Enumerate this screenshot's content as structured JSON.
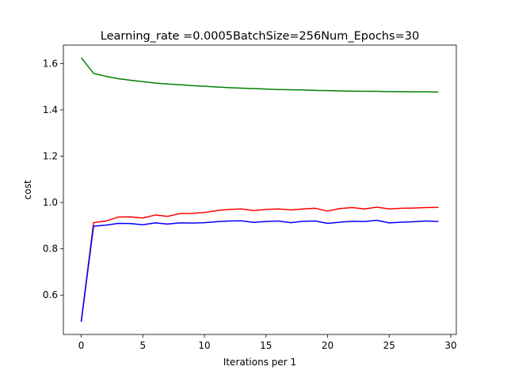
{
  "chart_data": {
    "type": "line",
    "title": "Learning_rate =0.0005BatchSize=256Num_Epochs=30",
    "xlabel": "Iterations per 1",
    "ylabel": "cost",
    "xlim": [
      -1.45,
      30.45
    ],
    "ylim": [
      0.43,
      1.68
    ],
    "x_ticks": [
      0,
      5,
      10,
      15,
      20,
      25,
      30
    ],
    "y_ticks": [
      0.6,
      0.8,
      1.0,
      1.2,
      1.4,
      1.6
    ],
    "x": [
      0,
      1,
      2,
      3,
      4,
      5,
      6,
      7,
      8,
      9,
      10,
      11,
      12,
      13,
      14,
      15,
      16,
      17,
      18,
      19,
      20,
      21,
      22,
      23,
      24,
      25,
      26,
      27,
      28,
      29
    ],
    "series": [
      {
        "color": "#008000",
        "values": [
          1.625,
          1.558,
          1.545,
          1.535,
          1.528,
          1.522,
          1.516,
          1.512,
          1.509,
          1.505,
          1.502,
          1.499,
          1.496,
          1.494,
          1.492,
          1.49,
          1.488,
          1.487,
          1.486,
          1.484,
          1.483,
          1.482,
          1.481,
          1.48,
          1.48,
          1.479,
          1.479,
          1.478,
          1.478,
          1.477
        ]
      },
      {
        "color": "#ff0000",
        "values": [
          0.485,
          0.913,
          0.92,
          0.937,
          0.938,
          0.933,
          0.946,
          0.94,
          0.952,
          0.953,
          0.957,
          0.965,
          0.97,
          0.972,
          0.965,
          0.97,
          0.972,
          0.968,
          0.972,
          0.975,
          0.963,
          0.974,
          0.978,
          0.972,
          0.98,
          0.972,
          0.975,
          0.976,
          0.978,
          0.979
        ]
      },
      {
        "color": "#0000ff",
        "values": [
          0.485,
          0.898,
          0.902,
          0.91,
          0.909,
          0.904,
          0.912,
          0.907,
          0.912,
          0.911,
          0.913,
          0.917,
          0.92,
          0.921,
          0.914,
          0.918,
          0.92,
          0.913,
          0.919,
          0.92,
          0.91,
          0.915,
          0.919,
          0.918,
          0.923,
          0.912,
          0.915,
          0.917,
          0.92,
          0.918
        ]
      }
    ],
    "grid": false,
    "legend": "none"
  }
}
